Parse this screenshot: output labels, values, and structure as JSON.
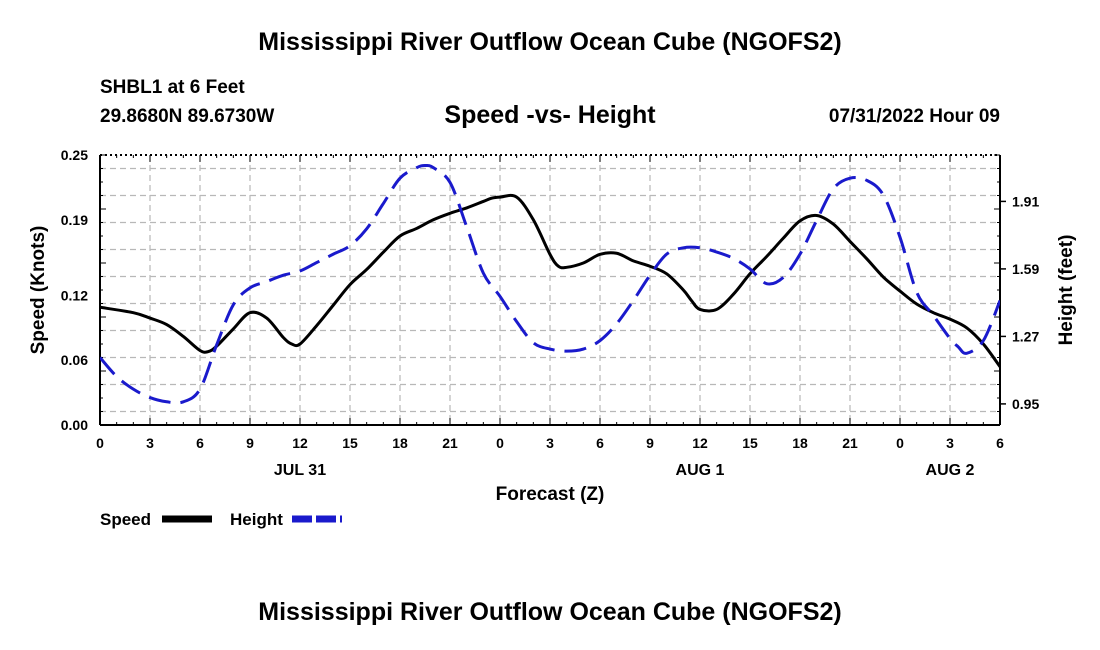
{
  "header": {
    "title": "Mississippi River Outflow Ocean Cube (NGOFS2)",
    "station": "SHBL1 at 6 Feet",
    "coords": "29.8680N  89.6730W",
    "subtitle": "Speed -vs- Height",
    "datetime": "07/31/2022 Hour 09"
  },
  "footer": {
    "title": "Mississippi River Outflow Ocean Cube (NGOFS2)"
  },
  "chart_data": {
    "type": "line",
    "xlabel": "Forecast (Z)",
    "ylabel": "Speed (Knots)",
    "y2label": "Height (feet)",
    "xlim": [
      0,
      54
    ],
    "ylim": [
      0,
      0.25
    ],
    "y2lim": [
      0.85,
      2.13
    ],
    "x_ticks": [
      0,
      3,
      6,
      9,
      12,
      15,
      18,
      21,
      24,
      27,
      30,
      33,
      36,
      39,
      42,
      45,
      48,
      51,
      54
    ],
    "x_tick_labels": [
      "0",
      "3",
      "6",
      "9",
      "12",
      "15",
      "18",
      "21",
      "0",
      "3",
      "6",
      "9",
      "12",
      "15",
      "18",
      "21",
      "0",
      "3",
      "6"
    ],
    "day_labels": [
      {
        "x": 12,
        "label": "JUL 31"
      },
      {
        "x": 36,
        "label": "AUG 1"
      },
      {
        "x": 51,
        "label": "AUG 2"
      }
    ],
    "y_ticks": [
      0.0,
      0.06,
      0.12,
      0.19,
      0.25
    ],
    "y_tick_labels": [
      "0.00",
      "0.06",
      "0.12",
      "0.19",
      "0.25"
    ],
    "y2_ticks": [
      0.95,
      1.27,
      1.59,
      1.91
    ],
    "y2_tick_labels": [
      "0.95",
      "1.27",
      "1.59",
      "1.91"
    ],
    "grid": true,
    "legend": {
      "position": "bottom-left",
      "entries": [
        "Speed",
        "Height"
      ]
    },
    "series": [
      {
        "name": "Speed",
        "axis": "left",
        "color": "#000000",
        "style": "solid",
        "x": [
          0,
          2,
          3,
          4,
          5,
          6,
          6.5,
          7,
          8,
          9,
          10,
          11,
          11.5,
          12,
          13,
          14,
          15,
          16,
          17,
          18,
          19,
          20,
          21,
          22,
          23,
          23.5,
          24,
          25,
          26,
          27,
          27.5,
          28,
          29,
          30,
          31,
          32,
          33,
          34,
          35,
          35.5,
          36,
          37,
          38,
          39,
          40,
          41,
          42,
          43,
          44,
          45,
          46,
          47,
          48,
          49,
          50,
          51,
          52,
          53,
          54
        ],
        "values": [
          0.109,
          0.104,
          0.099,
          0.093,
          0.082,
          0.069,
          0.068,
          0.073,
          0.089,
          0.104,
          0.099,
          0.081,
          0.075,
          0.075,
          0.092,
          0.111,
          0.13,
          0.144,
          0.16,
          0.175,
          0.182,
          0.19,
          0.196,
          0.201,
          0.207,
          0.21,
          0.211,
          0.211,
          0.19,
          0.158,
          0.147,
          0.146,
          0.15,
          0.158,
          0.159,
          0.152,
          0.147,
          0.14,
          0.125,
          0.115,
          0.107,
          0.107,
          0.121,
          0.14,
          0.156,
          0.173,
          0.189,
          0.194,
          0.186,
          0.17,
          0.154,
          0.137,
          0.124,
          0.112,
          0.104,
          0.098,
          0.09,
          0.075,
          0.054
        ]
      },
      {
        "name": "Height",
        "axis": "right",
        "color": "#1a1acc",
        "style": "dashed",
        "x": [
          0,
          1,
          2,
          3,
          4,
          5,
          6,
          7,
          8,
          9,
          10,
          11,
          12,
          13,
          14,
          15,
          16,
          17,
          18,
          19,
          19.5,
          20,
          21,
          22,
          23,
          24,
          25,
          26,
          27,
          28,
          29,
          30,
          31,
          32,
          33,
          34,
          35,
          36,
          37,
          38,
          39,
          40,
          41,
          42,
          43,
          44,
          45,
          46,
          47,
          48,
          49,
          50,
          51,
          51.5,
          52,
          53,
          54
        ],
        "values": [
          1.17,
          1.08,
          1.02,
          0.98,
          0.96,
          0.96,
          1.02,
          1.23,
          1.42,
          1.5,
          1.53,
          1.56,
          1.58,
          1.62,
          1.66,
          1.7,
          1.78,
          1.9,
          2.02,
          2.07,
          2.08,
          2.07,
          2.0,
          1.79,
          1.57,
          1.46,
          1.34,
          1.24,
          1.21,
          1.2,
          1.21,
          1.25,
          1.33,
          1.44,
          1.56,
          1.66,
          1.69,
          1.69,
          1.67,
          1.64,
          1.59,
          1.52,
          1.55,
          1.66,
          1.82,
          1.97,
          2.02,
          2.01,
          1.94,
          1.74,
          1.48,
          1.37,
          1.26,
          1.22,
          1.19,
          1.25,
          1.44
        ]
      }
    ]
  }
}
